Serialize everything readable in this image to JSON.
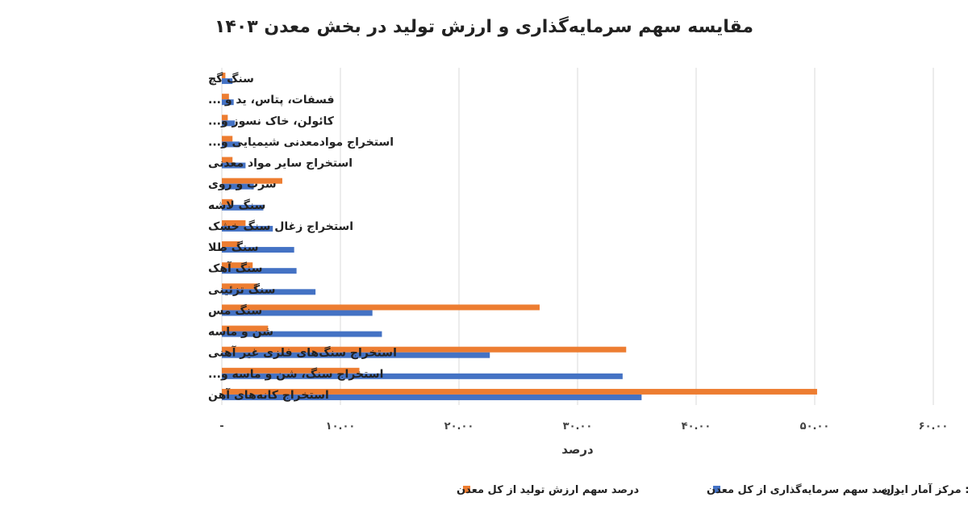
{
  "chart_data": {
    "type": "bar",
    "orientation": "horizontal",
    "title": "مقایسه سهم سرمایه‌گذاری و ارزش تولید در بخش معدن ۱۴۰۳",
    "xlabel": "درصد",
    "ylabel": "",
    "xlim": [
      0,
      60
    ],
    "xticks": [
      0,
      10,
      20,
      30,
      40,
      50,
      60
    ],
    "xtick_labels": [
      "-",
      "۱۰.۰۰",
      "۲۰.۰۰",
      "۳۰.۰۰",
      "۴۰.۰۰",
      "۵۰.۰۰",
      "۶۰.۰۰"
    ],
    "grid": true,
    "legend_position": "bottom",
    "categories": [
      "سنگ گچ",
      "فسفات، پتاس، ید و ...",
      "کائولن، خاک نسوز و...",
      "استخراج موادمعدنی شیمیایی و...",
      "استخراج سایر مواد معدنی",
      "سرب و روی",
      "سنگ لاشه",
      "استخراج زغال سنگ خشک",
      "سنگ طلا",
      "سنگ آهک",
      "سنگ تزئینی",
      "سنگ مس",
      "شن و ماسه",
      "استخراج سنگ‌های فلزی غیر آهنی",
      "استخراج سنگ، شن و ماسه و...",
      "استخراج کانه‌های آهن"
    ],
    "series": [
      {
        "name": "درصد سهم ارزش تولید از کل معدن",
        "color": "#ED7D31",
        "values": [
          0.3,
          0.6,
          0.5,
          0.9,
          0.9,
          5.1,
          0.9,
          2.0,
          1.5,
          2.6,
          3.0,
          26.8,
          3.9,
          34.1,
          11.6,
          50.2
        ]
      },
      {
        "name": "درصد سهم سرمایه‌گذاری از کل معدن",
        "color": "#4472C4",
        "values": [
          0.9,
          1.0,
          1.1,
          1.5,
          2.0,
          2.7,
          3.5,
          4.3,
          6.1,
          6.3,
          7.9,
          12.7,
          13.5,
          22.6,
          33.8,
          35.4
        ]
      }
    ]
  },
  "source": "منبع: مرکز آمار ایران"
}
